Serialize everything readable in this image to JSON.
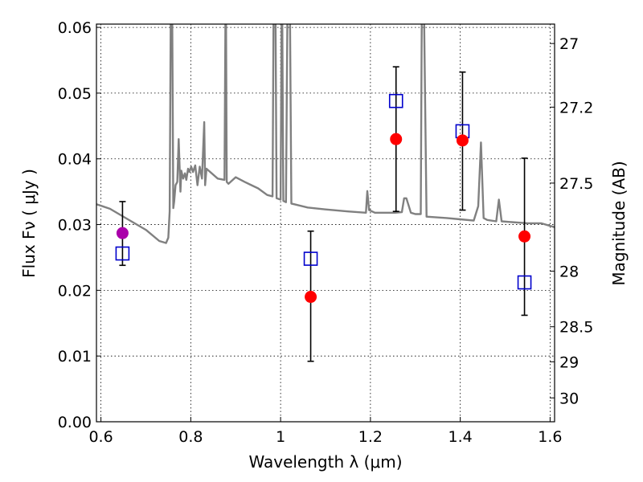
{
  "chart_data": {
    "type": "scatter",
    "title": "",
    "xlabel": "Wavelength  λ (μm)",
    "ylabel": "Flux  Fν  ( μJy )",
    "ylabel_right": "Magnitude (AB)",
    "xlim": [
      0.59,
      1.61
    ],
    "ylim": [
      0.0,
      0.0605
    ],
    "grid": true,
    "x_ticks": [
      0.6,
      0.8,
      1.0,
      1.2,
      1.4,
      1.6
    ],
    "x_tick_labels": [
      "0.6",
      "0.8",
      "1",
      "1.2",
      "1.4",
      "1.6"
    ],
    "y_ticks": [
      0.0,
      0.01,
      0.02,
      0.03,
      0.04,
      0.05,
      0.06
    ],
    "y_tick_labels": [
      "0.00",
      "0.01",
      "0.02",
      "0.03",
      "0.04",
      "0.05",
      "0.06"
    ],
    "right_ticks": [
      {
        "label": "27",
        "mag": 27.0
      },
      {
        "label": "27.2",
        "mag": 27.2
      },
      {
        "label": "27.5",
        "mag": 27.5
      },
      {
        "label": "28",
        "mag": 28.0
      },
      {
        "label": "28.5",
        "mag": 28.5
      },
      {
        "label": "29",
        "mag": 29.0
      },
      {
        "label": "30",
        "mag": 30.0
      }
    ],
    "series": [
      {
        "kind": "observed",
        "color": "#ff0000",
        "x": [
          1.067,
          1.257,
          1.405,
          1.543
        ],
        "y": [
          0.019,
          0.043,
          0.0428,
          0.0282
        ]
      },
      {
        "kind": "observed-highlight",
        "color": "#aa00aa",
        "x": [
          0.648
        ],
        "y": [
          0.0287
        ]
      },
      {
        "kind": "model",
        "color": "#0000cc",
        "x": [
          0.648,
          1.067,
          1.257,
          1.405,
          1.543
        ],
        "y": [
          0.0256,
          0.0248,
          0.0488,
          0.0442,
          0.0212
        ]
      },
      {
        "kind": "error-bars",
        "color": "#000000",
        "x": [
          0.648,
          1.067,
          1.257,
          1.405,
          1.543
        ],
        "ylow": [
          0.0238,
          0.0092,
          0.032,
          0.0322,
          0.0162
        ],
        "yhigh": [
          0.0335,
          0.029,
          0.054,
          0.0532,
          0.0401
        ]
      },
      {
        "kind": "spectrum",
        "color": "#808080",
        "x": [
          0.59,
          0.62,
          0.66,
          0.7,
          0.73,
          0.745,
          0.75,
          0.753,
          0.756,
          0.758,
          0.761,
          0.763,
          0.766,
          0.77,
          0.773,
          0.777,
          0.779,
          0.783,
          0.787,
          0.79,
          0.794,
          0.797,
          0.801,
          0.805,
          0.81,
          0.815,
          0.82,
          0.825,
          0.83,
          0.832,
          0.835,
          0.84,
          0.86,
          0.875,
          0.878,
          0.88,
          0.884,
          0.9,
          0.92,
          0.935,
          0.95,
          0.97,
          0.982,
          0.985,
          0.988,
          0.991,
          1.0,
          1.003,
          1.006,
          1.012,
          1.016,
          1.02,
          1.024,
          1.03,
          1.06,
          1.1,
          1.15,
          1.19,
          1.193,
          1.197,
          1.21,
          1.255,
          1.27,
          1.275,
          1.28,
          1.29,
          1.3,
          1.312,
          1.315,
          1.318,
          1.325,
          1.37,
          1.4,
          1.43,
          1.44,
          1.446,
          1.452,
          1.46,
          1.48,
          1.486,
          1.492,
          1.51,
          1.55,
          1.58,
          1.61
        ],
        "y": [
          0.0331,
          0.0324,
          0.0308,
          0.0292,
          0.0275,
          0.0272,
          0.028,
          0.032,
          0.07,
          0.07,
          0.0325,
          0.0335,
          0.036,
          0.0365,
          0.043,
          0.035,
          0.0382,
          0.037,
          0.0378,
          0.0368,
          0.0385,
          0.038,
          0.0388,
          0.038,
          0.039,
          0.036,
          0.0388,
          0.037,
          0.0456,
          0.036,
          0.0385,
          0.0382,
          0.037,
          0.0368,
          0.07,
          0.0365,
          0.0362,
          0.0372,
          0.0365,
          0.036,
          0.0355,
          0.0345,
          0.0343,
          0.07,
          0.07,
          0.034,
          0.0338,
          0.07,
          0.0336,
          0.0334,
          0.07,
          0.07,
          0.0332,
          0.0331,
          0.0326,
          0.0323,
          0.032,
          0.0318,
          0.0351,
          0.0322,
          0.0318,
          0.0318,
          0.0319,
          0.034,
          0.034,
          0.0318,
          0.0316,
          0.0316,
          0.07,
          0.07,
          0.0312,
          0.031,
          0.0308,
          0.0306,
          0.0328,
          0.0425,
          0.031,
          0.0307,
          0.0305,
          0.0338,
          0.0305,
          0.0304,
          0.0302,
          0.0302,
          0.0296
        ]
      }
    ]
  }
}
